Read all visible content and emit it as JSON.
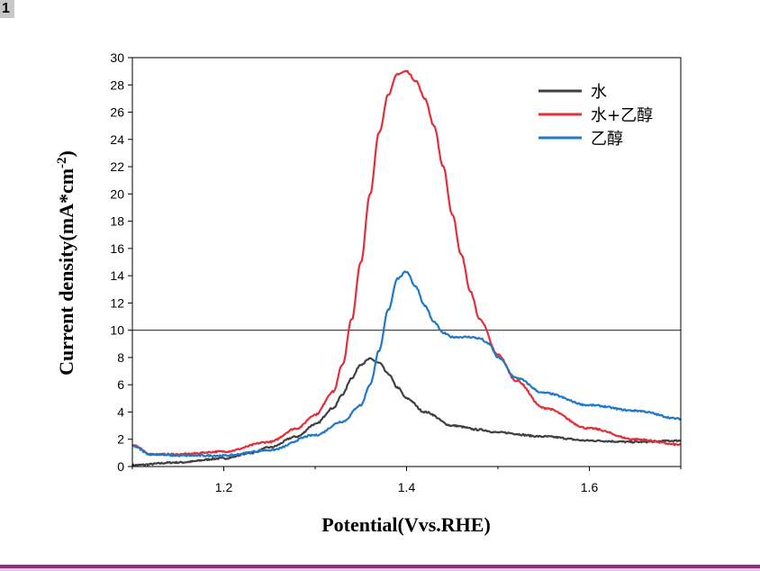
{
  "corner_label": "1",
  "chart_data": {
    "type": "line",
    "title": "",
    "xlabel": "Potential(Vvs.RHE)",
    "ylabel_main": "Current density(mA*cm",
    "ylabel_sup": "-2",
    "ylabel_end": ")",
    "xlim": [
      1.1,
      1.7
    ],
    "ylim": [
      0,
      30
    ],
    "xticks": [
      1.2,
      1.4,
      1.6
    ],
    "xtick_labels": [
      "1.2",
      "1.4",
      "1.6"
    ],
    "yticks": [
      0,
      2,
      4,
      6,
      8,
      10,
      12,
      14,
      16,
      18,
      20,
      22,
      24,
      26,
      28,
      30
    ],
    "ytick_labels": [
      "0",
      "2",
      "4",
      "6",
      "8",
      "10",
      "12",
      "14",
      "16",
      "18",
      "20",
      "22",
      "24",
      "26",
      "28",
      "30"
    ],
    "reference_line_y": 10,
    "legend_position": "top-right",
    "series": [
      {
        "name": "水",
        "color": "#404040",
        "x": [
          1.1,
          1.15,
          1.2,
          1.23,
          1.25,
          1.28,
          1.3,
          1.32,
          1.33,
          1.34,
          1.35,
          1.36,
          1.37,
          1.38,
          1.39,
          1.4,
          1.42,
          1.45,
          1.48,
          1.5,
          1.55,
          1.6,
          1.65,
          1.7
        ],
        "y": [
          0.1,
          0.3,
          0.6,
          1.0,
          1.4,
          2.2,
          3.1,
          4.3,
          5.3,
          6.5,
          7.5,
          7.9,
          7.6,
          6.8,
          5.8,
          5.0,
          4.0,
          3.0,
          2.7,
          2.5,
          2.2,
          1.9,
          1.8,
          1.9
        ]
      },
      {
        "name": "水+乙醇",
        "color": "#e0303a",
        "x": [
          1.1,
          1.12,
          1.15,
          1.2,
          1.25,
          1.28,
          1.3,
          1.32,
          1.33,
          1.34,
          1.35,
          1.36,
          1.37,
          1.38,
          1.39,
          1.4,
          1.41,
          1.42,
          1.43,
          1.44,
          1.45,
          1.46,
          1.47,
          1.48,
          1.5,
          1.52,
          1.55,
          1.6,
          1.65,
          1.7
        ],
        "y": [
          1.6,
          0.9,
          0.9,
          1.1,
          1.8,
          2.8,
          3.8,
          5.5,
          7.5,
          10.8,
          15.0,
          20.0,
          24.5,
          27.3,
          28.8,
          29.0,
          28.3,
          27.0,
          25.0,
          22.0,
          18.5,
          15.5,
          12.8,
          10.8,
          8.2,
          6.3,
          4.3,
          2.8,
          2.0,
          1.6
        ]
      },
      {
        "name": "乙醇",
        "color": "#1f78c8",
        "x": [
          1.1,
          1.12,
          1.15,
          1.2,
          1.25,
          1.3,
          1.33,
          1.35,
          1.36,
          1.37,
          1.38,
          1.39,
          1.4,
          1.41,
          1.42,
          1.43,
          1.44,
          1.45,
          1.47,
          1.48,
          1.49,
          1.5,
          1.52,
          1.55,
          1.6,
          1.65,
          1.7
        ],
        "y": [
          1.5,
          0.9,
          0.8,
          0.8,
          1.2,
          2.3,
          3.3,
          4.5,
          6.0,
          8.5,
          11.5,
          13.8,
          14.3,
          13.2,
          11.8,
          10.6,
          9.8,
          9.5,
          9.5,
          9.4,
          9.0,
          8.0,
          6.5,
          5.4,
          4.5,
          4.1,
          3.5
        ]
      }
    ]
  }
}
